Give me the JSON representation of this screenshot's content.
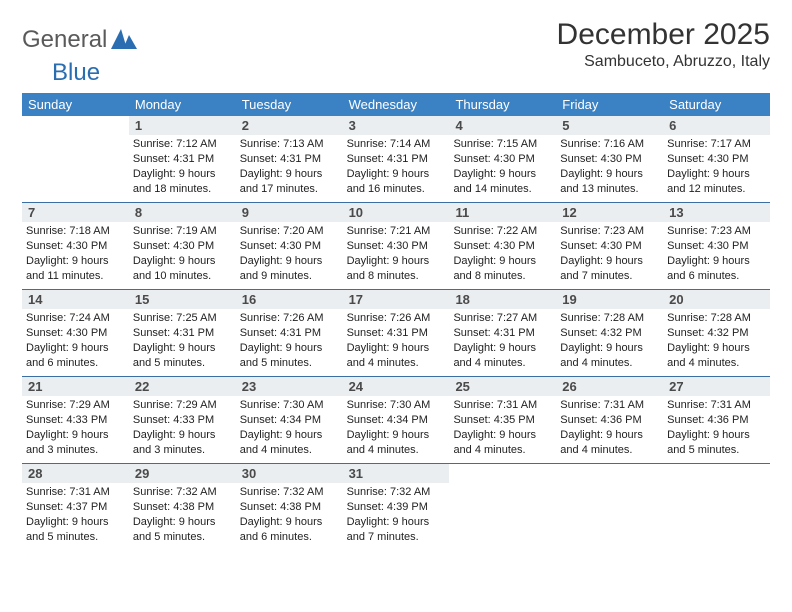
{
  "logo": {
    "text1": "General",
    "text2": "Blue"
  },
  "title": "December 2025",
  "location": "Sambuceto, Abruzzo, Italy",
  "colors": {
    "header_bg": "#3b82c4",
    "header_fg": "#ffffff",
    "daynum_bg": "#ebeef1",
    "rule": "#3b6fa3",
    "text": "#222222",
    "title_color": "#333333",
    "logo_gray": "#5a5a5a",
    "logo_blue": "#2a6db0",
    "page_bg": "#ffffff"
  },
  "typography": {
    "title_fontsize": 30,
    "location_fontsize": 16,
    "dayheader_fontsize": 13,
    "daynum_fontsize": 13,
    "detail_fontsize": 11
  },
  "day_headers": [
    "Sunday",
    "Monday",
    "Tuesday",
    "Wednesday",
    "Thursday",
    "Friday",
    "Saturday"
  ],
  "weeks": [
    [
      {
        "n": "",
        "sr": "",
        "ss": "",
        "dl": ""
      },
      {
        "n": "1",
        "sr": "Sunrise: 7:12 AM",
        "ss": "Sunset: 4:31 PM",
        "dl": "Daylight: 9 hours and 18 minutes."
      },
      {
        "n": "2",
        "sr": "Sunrise: 7:13 AM",
        "ss": "Sunset: 4:31 PM",
        "dl": "Daylight: 9 hours and 17 minutes."
      },
      {
        "n": "3",
        "sr": "Sunrise: 7:14 AM",
        "ss": "Sunset: 4:31 PM",
        "dl": "Daylight: 9 hours and 16 minutes."
      },
      {
        "n": "4",
        "sr": "Sunrise: 7:15 AM",
        "ss": "Sunset: 4:30 PM",
        "dl": "Daylight: 9 hours and 14 minutes."
      },
      {
        "n": "5",
        "sr": "Sunrise: 7:16 AM",
        "ss": "Sunset: 4:30 PM",
        "dl": "Daylight: 9 hours and 13 minutes."
      },
      {
        "n": "6",
        "sr": "Sunrise: 7:17 AM",
        "ss": "Sunset: 4:30 PM",
        "dl": "Daylight: 9 hours and 12 minutes."
      }
    ],
    [
      {
        "n": "7",
        "sr": "Sunrise: 7:18 AM",
        "ss": "Sunset: 4:30 PM",
        "dl": "Daylight: 9 hours and 11 minutes."
      },
      {
        "n": "8",
        "sr": "Sunrise: 7:19 AM",
        "ss": "Sunset: 4:30 PM",
        "dl": "Daylight: 9 hours and 10 minutes."
      },
      {
        "n": "9",
        "sr": "Sunrise: 7:20 AM",
        "ss": "Sunset: 4:30 PM",
        "dl": "Daylight: 9 hours and 9 minutes."
      },
      {
        "n": "10",
        "sr": "Sunrise: 7:21 AM",
        "ss": "Sunset: 4:30 PM",
        "dl": "Daylight: 9 hours and 8 minutes."
      },
      {
        "n": "11",
        "sr": "Sunrise: 7:22 AM",
        "ss": "Sunset: 4:30 PM",
        "dl": "Daylight: 9 hours and 8 minutes."
      },
      {
        "n": "12",
        "sr": "Sunrise: 7:23 AM",
        "ss": "Sunset: 4:30 PM",
        "dl": "Daylight: 9 hours and 7 minutes."
      },
      {
        "n": "13",
        "sr": "Sunrise: 7:23 AM",
        "ss": "Sunset: 4:30 PM",
        "dl": "Daylight: 9 hours and 6 minutes."
      }
    ],
    [
      {
        "n": "14",
        "sr": "Sunrise: 7:24 AM",
        "ss": "Sunset: 4:30 PM",
        "dl": "Daylight: 9 hours and 6 minutes."
      },
      {
        "n": "15",
        "sr": "Sunrise: 7:25 AM",
        "ss": "Sunset: 4:31 PM",
        "dl": "Daylight: 9 hours and 5 minutes."
      },
      {
        "n": "16",
        "sr": "Sunrise: 7:26 AM",
        "ss": "Sunset: 4:31 PM",
        "dl": "Daylight: 9 hours and 5 minutes."
      },
      {
        "n": "17",
        "sr": "Sunrise: 7:26 AM",
        "ss": "Sunset: 4:31 PM",
        "dl": "Daylight: 9 hours and 4 minutes."
      },
      {
        "n": "18",
        "sr": "Sunrise: 7:27 AM",
        "ss": "Sunset: 4:31 PM",
        "dl": "Daylight: 9 hours and 4 minutes."
      },
      {
        "n": "19",
        "sr": "Sunrise: 7:28 AM",
        "ss": "Sunset: 4:32 PM",
        "dl": "Daylight: 9 hours and 4 minutes."
      },
      {
        "n": "20",
        "sr": "Sunrise: 7:28 AM",
        "ss": "Sunset: 4:32 PM",
        "dl": "Daylight: 9 hours and 4 minutes."
      }
    ],
    [
      {
        "n": "21",
        "sr": "Sunrise: 7:29 AM",
        "ss": "Sunset: 4:33 PM",
        "dl": "Daylight: 9 hours and 3 minutes."
      },
      {
        "n": "22",
        "sr": "Sunrise: 7:29 AM",
        "ss": "Sunset: 4:33 PM",
        "dl": "Daylight: 9 hours and 3 minutes."
      },
      {
        "n": "23",
        "sr": "Sunrise: 7:30 AM",
        "ss": "Sunset: 4:34 PM",
        "dl": "Daylight: 9 hours and 4 minutes."
      },
      {
        "n": "24",
        "sr": "Sunrise: 7:30 AM",
        "ss": "Sunset: 4:34 PM",
        "dl": "Daylight: 9 hours and 4 minutes."
      },
      {
        "n": "25",
        "sr": "Sunrise: 7:31 AM",
        "ss": "Sunset: 4:35 PM",
        "dl": "Daylight: 9 hours and 4 minutes."
      },
      {
        "n": "26",
        "sr": "Sunrise: 7:31 AM",
        "ss": "Sunset: 4:36 PM",
        "dl": "Daylight: 9 hours and 4 minutes."
      },
      {
        "n": "27",
        "sr": "Sunrise: 7:31 AM",
        "ss": "Sunset: 4:36 PM",
        "dl": "Daylight: 9 hours and 5 minutes."
      }
    ],
    [
      {
        "n": "28",
        "sr": "Sunrise: 7:31 AM",
        "ss": "Sunset: 4:37 PM",
        "dl": "Daylight: 9 hours and 5 minutes."
      },
      {
        "n": "29",
        "sr": "Sunrise: 7:32 AM",
        "ss": "Sunset: 4:38 PM",
        "dl": "Daylight: 9 hours and 5 minutes."
      },
      {
        "n": "30",
        "sr": "Sunrise: 7:32 AM",
        "ss": "Sunset: 4:38 PM",
        "dl": "Daylight: 9 hours and 6 minutes."
      },
      {
        "n": "31",
        "sr": "Sunrise: 7:32 AM",
        "ss": "Sunset: 4:39 PM",
        "dl": "Daylight: 9 hours and 7 minutes."
      },
      {
        "n": "",
        "sr": "",
        "ss": "",
        "dl": ""
      },
      {
        "n": "",
        "sr": "",
        "ss": "",
        "dl": ""
      },
      {
        "n": "",
        "sr": "",
        "ss": "",
        "dl": ""
      }
    ]
  ]
}
